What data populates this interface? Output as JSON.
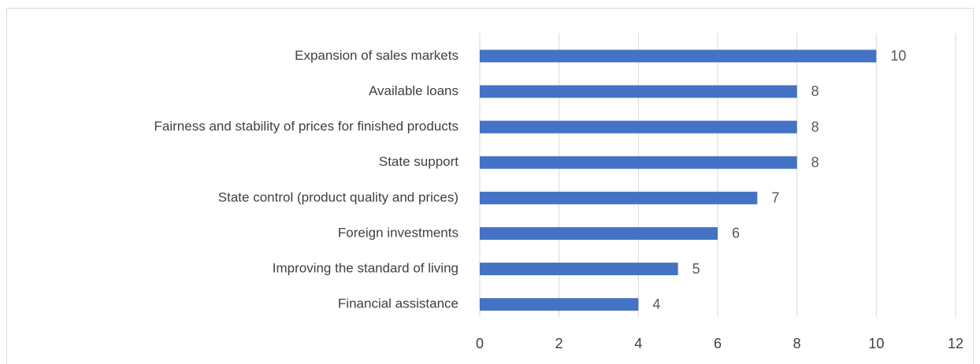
{
  "chart_data": {
    "type": "bar",
    "orientation": "horizontal",
    "categories": [
      "Expansion of sales markets",
      "Available loans",
      "Fairness and stability of prices for finished products",
      "State support",
      "State control (product quality and prices)",
      "Foreign investments",
      "Improving the standard of living",
      "Financial assistance"
    ],
    "values": [
      10,
      8,
      8,
      8,
      7,
      6,
      5,
      4
    ],
    "color": "#4472c4",
    "xlim": [
      0,
      12
    ],
    "xticks": [
      0,
      2,
      4,
      6,
      8,
      10,
      12
    ],
    "grid": true
  }
}
